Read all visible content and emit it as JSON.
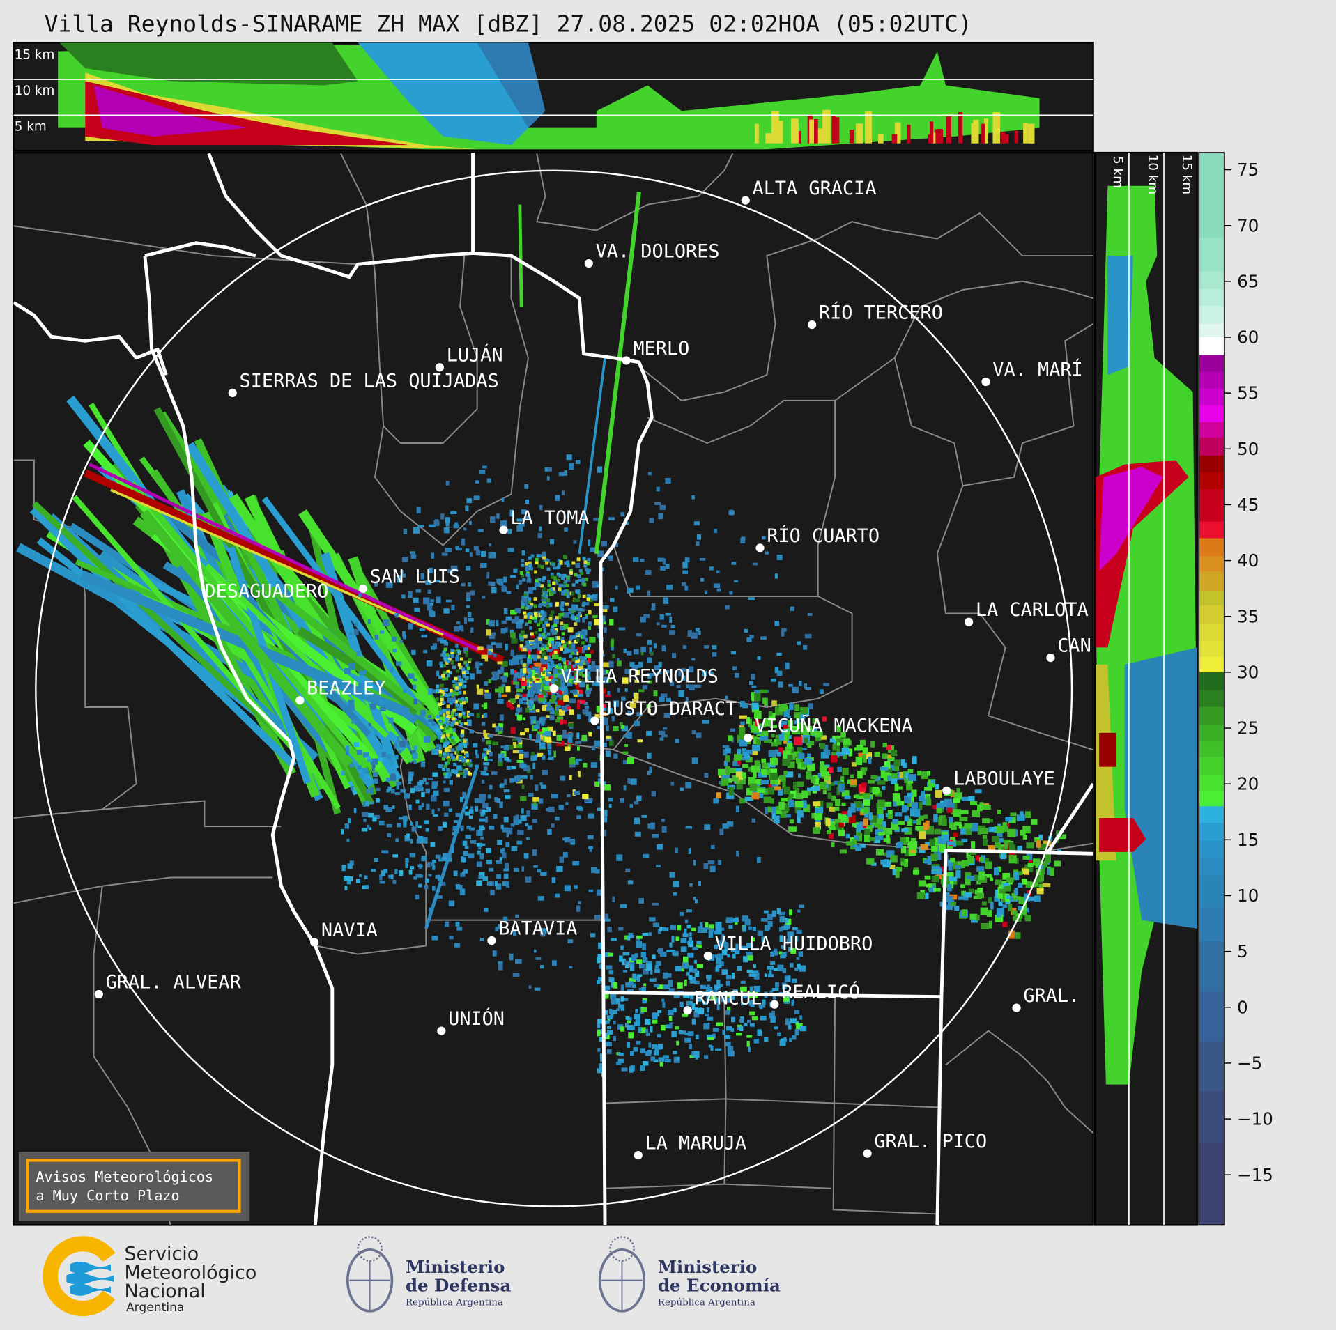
{
  "title": "Villa Reynolds-SINARAME ZH MAX [dBZ] 27.08.2025 02:02HOA (05:02UTC)",
  "top_panel": {
    "height_labels": [
      "15 km",
      "10 km",
      "5 km"
    ]
  },
  "side_panel": {
    "height_labels": [
      "5 km",
      "10 km",
      "15 km"
    ]
  },
  "map": {
    "cities": [
      {
        "name": "ALTA GRACIA"
      },
      {
        "name": "VA. DOLORES"
      },
      {
        "name": "RÍO TERCERO"
      },
      {
        "name": "LUJÁN"
      },
      {
        "name": "MERLO"
      },
      {
        "name": "VA. MARÍ"
      },
      {
        "name": "SIERRAS DE LAS QUIJADAS"
      },
      {
        "name": "LA TOMA"
      },
      {
        "name": "RÍO CUARTO"
      },
      {
        "name": "SAN LUIS"
      },
      {
        "name": "DESAGUADERO"
      },
      {
        "name": "LA CARLOTA"
      },
      {
        "name": "CAN"
      },
      {
        "name": "VILLA REYNOLDS"
      },
      {
        "name": "BEAZLEY"
      },
      {
        "name": "JUSTO DARACT"
      },
      {
        "name": "VICUÑA MACKENA"
      },
      {
        "name": "LABOULAYE"
      },
      {
        "name": "NAVIA"
      },
      {
        "name": "BATAVIA"
      },
      {
        "name": "VILLA HUIDOBRO"
      },
      {
        "name": "GRAL. ALVEAR"
      },
      {
        "name": "RANCUL"
      },
      {
        "name": "REALICÓ"
      },
      {
        "name": "GRAL."
      },
      {
        "name": "UNIÓN"
      },
      {
        "name": "LA MARUJA"
      },
      {
        "name": "GRAL. PICO"
      }
    ],
    "notice_box": {
      "line1": "Avisos Meteorológicos",
      "line2": "a Muy Corto Plazo",
      "border_color": "#ffa500"
    }
  },
  "colorbar": {
    "unit": "dBZ",
    "ticks": [
      "75",
      "70",
      "65",
      "60",
      "55",
      "50",
      "45",
      "40",
      "35",
      "30",
      "25",
      "20",
      "15",
      "10",
      "5",
      "0",
      "−5",
      "−10",
      "−15"
    ],
    "range": [
      -19.5,
      76.5
    ],
    "colors": [
      [
        76.5,
        "#88dcbc"
      ],
      [
        68.9,
        "#98e2c6"
      ],
      [
        65.9,
        "#a8e8cf"
      ],
      [
        64.3,
        "#b8eedb"
      ],
      [
        62.8,
        "#caf2e4"
      ],
      [
        61.2,
        "#e0f6ee"
      ],
      [
        60,
        "#ffffff"
      ],
      [
        58.4,
        "#9c009c"
      ],
      [
        56.9,
        "#b400b4"
      ],
      [
        55.4,
        "#cc00cc"
      ],
      [
        53.9,
        "#e800e8"
      ],
      [
        52.4,
        "#d0009a"
      ],
      [
        51,
        "#c0005e"
      ],
      [
        49.4,
        "#980000"
      ],
      [
        47.9,
        "#b00000"
      ],
      [
        46.4,
        "#c4001a"
      ],
      [
        44.9,
        "#c8001e"
      ],
      [
        43.5,
        "#ec1030"
      ],
      [
        42,
        "#dd7a18"
      ],
      [
        40.4,
        "#d99020"
      ],
      [
        39,
        "#cfa624"
      ],
      [
        37.3,
        "#c2c22c"
      ],
      [
        36,
        "#d4cc30"
      ],
      [
        34.3,
        "#dcd834"
      ],
      [
        32.8,
        "#e2e238"
      ],
      [
        31.4,
        "#eeee38"
      ],
      [
        30,
        "#226c1e"
      ],
      [
        28.4,
        "#2a801f"
      ],
      [
        26.9,
        "#349a22"
      ],
      [
        25.3,
        "#3aae25"
      ],
      [
        23.8,
        "#40c028"
      ],
      [
        22.4,
        "#44d22c"
      ],
      [
        20.8,
        "#48e22e"
      ],
      [
        19.3,
        "#4cf032"
      ],
      [
        18,
        "#2cb0dc"
      ],
      [
        16.5,
        "#2a9ed0"
      ],
      [
        14.9,
        "#2994c8"
      ],
      [
        13.4,
        "#2a8cc0"
      ],
      [
        11.8,
        "#2a84b8"
      ],
      [
        8.9,
        "#2d7bb0"
      ],
      [
        5.9,
        "#316ea2"
      ],
      [
        1.4,
        "#356298"
      ],
      [
        -3.1,
        "#395888"
      ],
      [
        -7.5,
        "#3b4c7c"
      ],
      [
        -12.1,
        "#3d4270"
      ]
    ]
  },
  "footer": {
    "smn": {
      "line1": "Servicio",
      "line2": "Meteorológico",
      "line3": "Nacional",
      "line4": "Argentina"
    },
    "defensa": {
      "line1": "Ministerio",
      "line2": "de Defensa",
      "line3": "República Argentina"
    },
    "economia": {
      "line1": "Ministerio",
      "line2": "de Economía",
      "line3": "República Argentina"
    }
  }
}
